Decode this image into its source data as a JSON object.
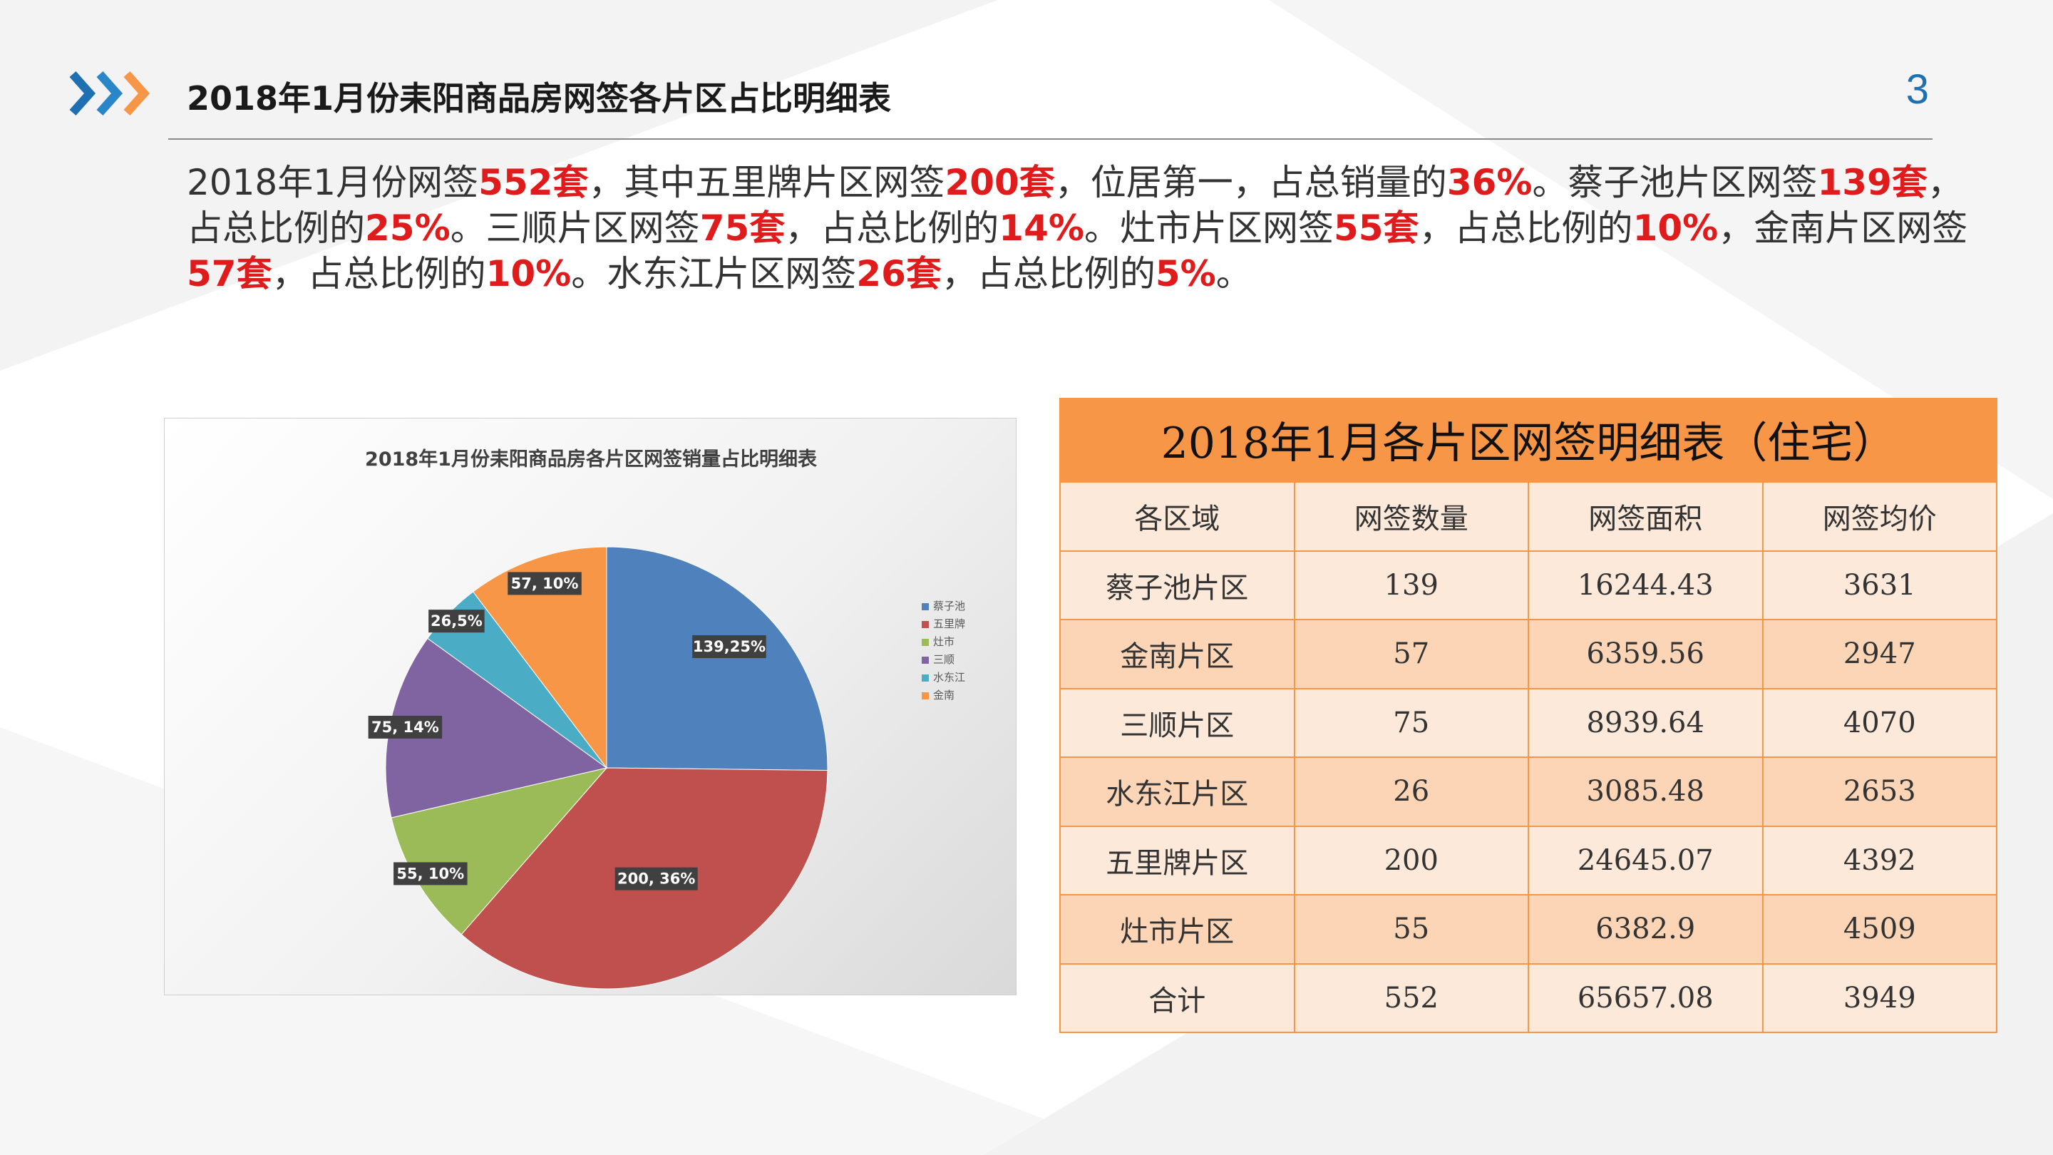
{
  "header": {
    "title": "2018年1月份耒阳商品房网签各片区占比明细表",
    "page_number": "3"
  },
  "summary": {
    "segments": [
      {
        "t": "2018年1月份网签",
        "h": false
      },
      {
        "t": "552套",
        "h": true
      },
      {
        "t": "，其中五里牌片区网签",
        "h": false
      },
      {
        "t": "200套",
        "h": true
      },
      {
        "t": "，位居第一，占总销量的",
        "h": false
      },
      {
        "t": "36%",
        "h": true
      },
      {
        "t": "。蔡子池片区网签",
        "h": false
      },
      {
        "t": "139套",
        "h": true
      },
      {
        "t": "，占总比例的",
        "h": false
      },
      {
        "t": "25%",
        "h": true
      },
      {
        "t": "。三顺片区网签",
        "h": false
      },
      {
        "t": "75套",
        "h": true
      },
      {
        "t": "，占总比例的",
        "h": false
      },
      {
        "t": "14%",
        "h": true
      },
      {
        "t": "。灶市片区网签",
        "h": false
      },
      {
        "t": "55套",
        "h": true
      },
      {
        "t": "，占总比例的",
        "h": false
      },
      {
        "t": "10%",
        "h": true
      },
      {
        "t": "，金南片区网签",
        "h": false
      },
      {
        "t": "57套",
        "h": true
      },
      {
        "t": "，占总比例的",
        "h": false
      },
      {
        "t": "10%",
        "h": true
      },
      {
        "t": "。水东江片区网签",
        "h": false
      },
      {
        "t": "26套",
        "h": true
      },
      {
        "t": "，占总比例的",
        "h": false
      },
      {
        "t": "5%",
        "h": true
      },
      {
        "t": "。",
        "h": false
      }
    ]
  },
  "chart_data": {
    "type": "pie",
    "title": "2018年1月份耒阳商品房各片区网签销量占比明细表",
    "legend_position": "right",
    "slices": [
      {
        "name": "蔡子池",
        "value": 139,
        "label": "139,25%",
        "color": "#4f81bd"
      },
      {
        "name": "五里牌",
        "value": 200,
        "label": "200, 36%",
        "color": "#c0504d"
      },
      {
        "name": "灶市",
        "value": 55,
        "label": "55, 10%",
        "color": "#9bbb59"
      },
      {
        "name": "三顺",
        "value": 75,
        "label": "75, 14%",
        "color": "#8064a2"
      },
      {
        "name": "水东江",
        "value": 26,
        "label": "26,5%",
        "color": "#4bacc6"
      },
      {
        "name": "金南",
        "value": 57,
        "label": "57, 10%",
        "color": "#f79646"
      }
    ]
  },
  "table": {
    "title": "2018年1月各片区网签明细表（住宅）",
    "headers": [
      "各区域",
      "网签数量",
      "网签面积",
      "网签均价"
    ],
    "rows": [
      [
        "蔡子池片区",
        "139",
        "16244.43",
        "3631"
      ],
      [
        "金南片区",
        "57",
        "6359.56",
        "2947"
      ],
      [
        "三顺片区",
        "75",
        "8939.64",
        "4070"
      ],
      [
        "水东江片区",
        "26",
        "3085.48",
        "2653"
      ],
      [
        "五里牌片区",
        "200",
        "24645.07",
        "4392"
      ],
      [
        "灶市片区",
        "55",
        "6382.9",
        "4509"
      ],
      [
        "合计",
        "552",
        "65657.08",
        "3949"
      ]
    ]
  },
  "colors": {
    "accent_blue": "#1f6fb3",
    "accent_orange": "#f79646",
    "highlight_red": "#e01b1b"
  }
}
